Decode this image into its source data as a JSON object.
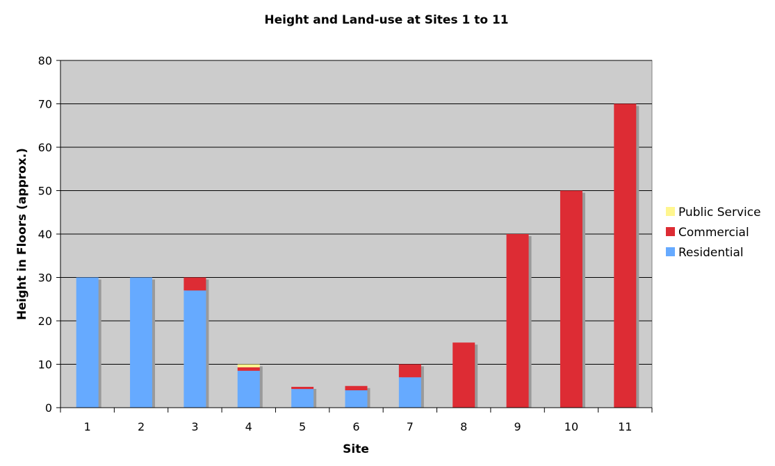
{
  "chart_data": {
    "type": "bar",
    "stacked": true,
    "title": "Height and Land-use at Sites 1 to 11",
    "xlabel": "Site",
    "ylabel": "Height in Floors (approx.)",
    "ylim": [
      0,
      80
    ],
    "yticks": [
      0,
      10,
      20,
      30,
      40,
      50,
      60,
      70,
      80
    ],
    "grid": true,
    "legend_position": "right",
    "categories": [
      "1",
      "2",
      "3",
      "4",
      "5",
      "6",
      "7",
      "8",
      "9",
      "10",
      "11"
    ],
    "series": [
      {
        "name": "Residential",
        "color": "#66aaff",
        "values": [
          30,
          30,
          27,
          8.5,
          4.3,
          4,
          7,
          0,
          0,
          0,
          0
        ]
      },
      {
        "name": "Commercial",
        "color": "#dd2c34",
        "values": [
          0,
          0,
          3,
          0.8,
          0.5,
          1,
          3,
          15,
          40,
          50,
          70
        ]
      },
      {
        "name": "Public Service",
        "color": "#fff68f",
        "values": [
          0,
          0,
          0,
          0.7,
          0,
          0,
          0,
          0,
          0,
          0,
          0
        ]
      }
    ],
    "legend_order": [
      "Public Service",
      "Commercial",
      "Residential"
    ]
  }
}
